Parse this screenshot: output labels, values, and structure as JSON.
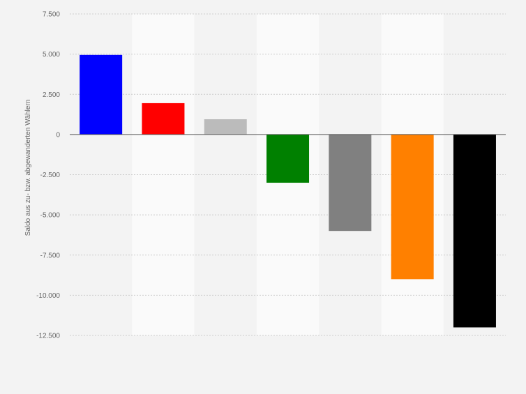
{
  "chart_data": {
    "type": "bar",
    "ylabel": "Saldo aus zu- bzw. abgewanderten Wählern",
    "ylim": [
      -12500,
      7500
    ],
    "yticks": [
      7500,
      5000,
      2500,
      0,
      -2500,
      -5000,
      -7500,
      -10000,
      -12500
    ],
    "ytick_labels": [
      "7.500",
      "5.000",
      "2.500",
      "0",
      "-2.500",
      "-5.000",
      "-7.500",
      "-10.000",
      "-12.500"
    ],
    "categories": [
      "",
      "",
      "",
      "",
      "",
      "",
      ""
    ],
    "values": [
      4950,
      1950,
      950,
      -3000,
      -6000,
      -9000,
      -12000
    ],
    "colors": [
      "#0000ff",
      "#ff0000",
      "#bbbbbb",
      "#008000",
      "#808080",
      "#ff8000",
      "#000000"
    ],
    "grid": true,
    "legend": "none"
  }
}
